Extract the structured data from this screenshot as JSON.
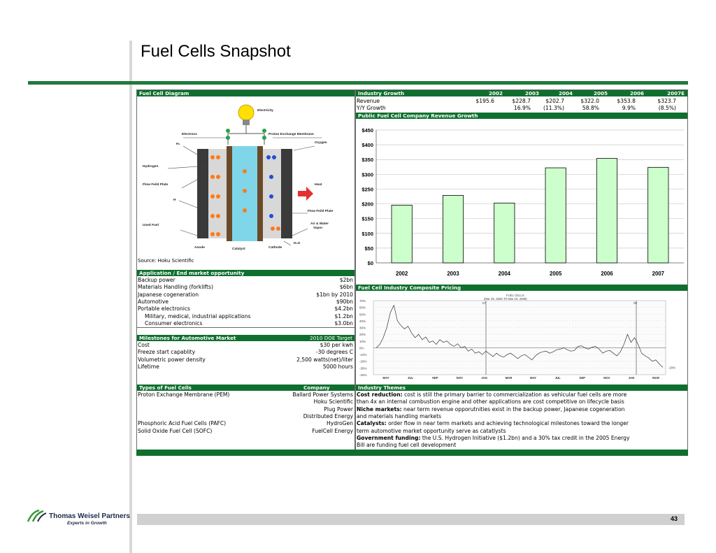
{
  "title": "Fuel Cells Snapshot",
  "diagram": {
    "header": "Fuel Cell Diagram",
    "labels": {
      "electricity": "Electricity",
      "electrons": "Electrons",
      "proton_membrane": "Proton Exchange Membrane",
      "h2": "H₂",
      "oxygen": "Oxygen",
      "hydrogen": "Hydrogen",
      "flow_plate_left": "Flow Feild Plate",
      "heat": "Heat",
      "h": "H",
      "flow_plate_right": "Flow Feild Plate",
      "used_fuel": "Used Fuel",
      "air_water_1": "Air & Water",
      "air_water_2": "Vapor",
      "h2o": "H₂O",
      "anode": "Anode",
      "catalyst": "Catalyst",
      "cathode": "Cathode"
    },
    "source": "Source: Hoku Scientific"
  },
  "industry_growth": {
    "header": "Industry Growth",
    "years": [
      "2002",
      "2003",
      "2004",
      "2005",
      "2006",
      "2007E"
    ],
    "revenue_label": "Revenue",
    "revenue": [
      "$195.6",
      "$228.7",
      "$202.7",
      "$322.0",
      "$353.8",
      "$323.7"
    ],
    "growth_label": "Y/Y Growth",
    "growth": [
      "",
      "16.9%",
      "(11.3%)",
      "58.8%",
      "9.9%",
      "(8.5%)"
    ]
  },
  "chart_data": {
    "type": "bar",
    "title": "Public Fuel Cell Company Revenue Growth",
    "categories": [
      "2002",
      "2003",
      "2004",
      "2005",
      "2006",
      "2007"
    ],
    "values": [
      195.6,
      228.7,
      202.7,
      322.0,
      353.8,
      323.7
    ],
    "ylim": [
      0,
      450
    ],
    "yticks": [
      "$0",
      "$50",
      "$100",
      "$150",
      "$200",
      "$250",
      "$300",
      "$350",
      "$400",
      "$450"
    ],
    "bar_color": "#ccffcc",
    "grid": true
  },
  "application": {
    "header": "Application / End market opportunity",
    "rows": [
      {
        "label": "Backup power",
        "value": "$2bn"
      },
      {
        "label": "Materials Handling (forklifts)",
        "value": "$6bn"
      },
      {
        "label": "Japanese cogeneration",
        "value": "$1bn by 2010"
      },
      {
        "label": "Automotive",
        "value": "$90bn"
      },
      {
        "label": "Portable electronics",
        "value": "$4.2bn"
      },
      {
        "label": "Military, medical, industrial applications",
        "value": "$1.2bn"
      },
      {
        "label": "Consumer electronics",
        "value": "$3.0bn"
      }
    ]
  },
  "pricing": {
    "header": "Fuel Cell Industry Composite Pricing",
    "yticks": [
      "70%",
      "60%",
      "50%",
      "40%",
      "30%",
      "20%",
      "10%",
      "0%",
      "-10%",
      "-20%",
      "-30%",
      "-40%"
    ],
    "months": [
      "MAY",
      "JUL",
      "SEP",
      "NOV",
      "JAN",
      "MAR",
      "MAY",
      "JUL",
      "SEP",
      "NOV",
      "JAN",
      "MAR"
    ],
    "label_top": "FUEL CELLS",
    "label_range": "(Mar 29, 2006 TO Mar 19, 2008)",
    "marker_07": "07",
    "marker_08": "08",
    "end_value": "-29%",
    "series": [
      0.0,
      0.05,
      0.15,
      0.3,
      0.52,
      0.63,
      0.4,
      0.33,
      0.28,
      0.32,
      0.22,
      0.15,
      0.2,
      0.12,
      0.16,
      0.08,
      0.1,
      0.05,
      0.12,
      0.08,
      0.1,
      0.05,
      0.02,
      0.06,
      0.0,
      0.02,
      -0.05,
      -0.02,
      -0.08,
      -0.06,
      -0.1,
      -0.05,
      -0.09,
      -0.13,
      -0.08,
      -0.12,
      -0.14,
      -0.1,
      -0.08,
      -0.12,
      -0.16,
      -0.12,
      -0.1,
      -0.14,
      -0.18,
      -0.12,
      -0.08,
      -0.06,
      -0.05,
      -0.08,
      -0.06,
      -0.03,
      -0.02,
      0.0,
      -0.03,
      -0.05,
      -0.04,
      0.02,
      0.03,
      0.0,
      -0.02,
      0.01,
      0.02,
      -0.02,
      -0.08,
      -0.05,
      -0.04,
      -0.08,
      -0.12,
      -0.06,
      0.05,
      0.2,
      0.08,
      0.15,
      0.05,
      -0.08,
      -0.12,
      -0.15,
      -0.2,
      -0.18,
      -0.24,
      -0.29
    ]
  },
  "milestones": {
    "header": "Milestones for Automotive Market",
    "header_right": "2010 DOE Target",
    "rows": [
      {
        "label": "Cost",
        "value": "$30 per kwh"
      },
      {
        "label": "Freeze start capablity",
        "value": "-30 degrees C"
      },
      {
        "label": "Volumetric power density",
        "value": "2,500 watts(net)/liter"
      },
      {
        "label": "Lifetime",
        "value": "5000 hours"
      }
    ]
  },
  "types": {
    "header": "Types of Fuel Cells",
    "header_right": "Company",
    "rows": [
      {
        "label": "Proton Exchange Membrane (PEM)",
        "value": "Ballard Power Systems"
      },
      {
        "label": "",
        "value": "Hoku Scientific"
      },
      {
        "label": "",
        "value": "Plug Power"
      },
      {
        "label": "",
        "value": "Distributed Energy"
      },
      {
        "label": "Phosphoric Acid Fuel Cells (PAFC)",
        "value": "HydroGen"
      },
      {
        "label": "Solid Oxide Fuel Cell (SOFC)",
        "value": "FuelCell Energy"
      }
    ]
  },
  "themes": {
    "header": "Industry Themes",
    "lines": [
      {
        "bold": "Cost reduction:",
        "text": " cost is still the primary barrier to commercialization as vehicular fuel cells are more"
      },
      {
        "bold": "",
        "text": "than 4x an internal combustion engine and other applications are cost competitive on lifecycle basis"
      },
      {
        "bold": "Niche markets:",
        "text": " near term revenue opporutnities exist in the backup power, Japanese cogeneration"
      },
      {
        "bold": "",
        "text": "and materials handling markets"
      },
      {
        "bold": "Catalysts:",
        "text": " order flow in near term markets and achieving technological milestones toward the longer"
      },
      {
        "bold": "",
        "text": "term automotive market opportunity serve as catatlysts"
      },
      {
        "bold": "Government funding:",
        "text": " the U.S. Hydrogen Initiative ($1.2bn) and a 30% tax credit in the 2005 Energy"
      },
      {
        "bold": "",
        "text": " Bill are funding fuel cell development"
      }
    ]
  },
  "footer": {
    "company": "Thomas Weisel Partners",
    "tagline": "Experts in Growth",
    "page": "43"
  }
}
